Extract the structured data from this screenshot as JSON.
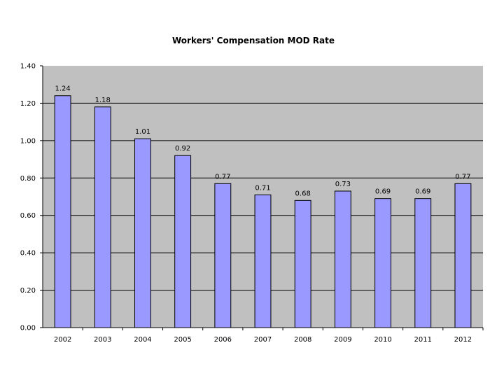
{
  "chart_data": {
    "type": "bar",
    "title": "Workers' Compensation MOD Rate",
    "xlabel": "",
    "ylabel": "",
    "categories": [
      "2002",
      "2003",
      "2004",
      "2005",
      "2006",
      "2007",
      "2008",
      "2009",
      "2010",
      "2011",
      "2012"
    ],
    "values": [
      1.24,
      1.18,
      1.01,
      0.92,
      0.77,
      0.71,
      0.68,
      0.73,
      0.69,
      0.69,
      0.77
    ],
    "data_labels": [
      "1.24",
      "1.18",
      "1.01",
      "0.92",
      "0.77",
      "0.71",
      "0.68",
      "0.73",
      "0.69",
      "0.69",
      "0.77"
    ],
    "ylim": [
      0,
      1.4
    ],
    "y_ticks": [
      0,
      0.2,
      0.4,
      0.6,
      0.8,
      1.0,
      1.2,
      1.4
    ],
    "y_tick_labels": [
      "0.00",
      "0.20",
      "0.40",
      "0.60",
      "0.80",
      "1.00",
      "1.20",
      "1.40"
    ],
    "grid": true,
    "legend": "none",
    "colors": {
      "bar_fill": "#9999ff",
      "bar_stroke": "#000000",
      "plot_background": "#c0c0c0",
      "gridline": "#000000"
    }
  }
}
